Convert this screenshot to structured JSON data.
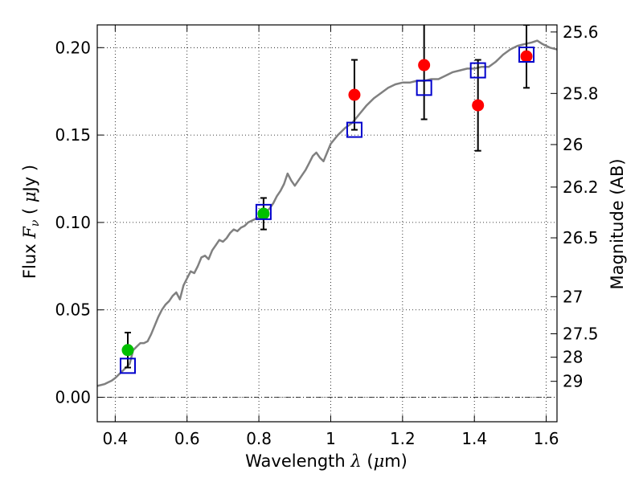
{
  "chart_data": {
    "type": "scatter",
    "title": "",
    "xlabel": "Wavelength  λ (μm)",
    "ylabel": "Flux  Fν  ( μJy )",
    "y2label": "Magnitude (AB)",
    "xlim": [
      0.35,
      1.63
    ],
    "ylim": [
      -0.014,
      0.213
    ],
    "grid": true,
    "legend": "none",
    "x_ticks": [
      {
        "value": 0.4,
        "label": "0.4"
      },
      {
        "value": 0.6,
        "label": "0.6"
      },
      {
        "value": 0.8,
        "label": "0.8"
      },
      {
        "value": 1.0,
        "label": "1"
      },
      {
        "value": 1.2,
        "label": "1.2"
      },
      {
        "value": 1.4,
        "label": "1.4"
      },
      {
        "value": 1.6,
        "label": "1.6"
      }
    ],
    "y_ticks": [
      {
        "value": 0.0,
        "label": "0.00"
      },
      {
        "value": 0.05,
        "label": "0.05"
      },
      {
        "value": 0.1,
        "label": "0.10"
      },
      {
        "value": 0.15,
        "label": "0.15"
      },
      {
        "value": 0.2,
        "label": "0.20"
      }
    ],
    "y2_ticks": [
      {
        "value": 25.6,
        "label": "25.6"
      },
      {
        "value": 25.8,
        "label": "25.8"
      },
      {
        "value": 26.0,
        "label": "26"
      },
      {
        "value": 26.2,
        "label": "26.2"
      },
      {
        "value": 26.5,
        "label": "26.5"
      },
      {
        "value": 27.0,
        "label": "27"
      },
      {
        "value": 27.5,
        "label": "27.5"
      },
      {
        "value": 28.0,
        "label": "28"
      },
      {
        "value": 29.0,
        "label": "29"
      }
    ],
    "series": [
      {
        "kind": "line",
        "color": "#808080",
        "points": [
          [
            0.35,
            0.0065
          ],
          [
            0.37,
            0.0075
          ],
          [
            0.38,
            0.0085
          ],
          [
            0.39,
            0.0095
          ],
          [
            0.4,
            0.011
          ],
          [
            0.41,
            0.013
          ],
          [
            0.42,
            0.015
          ],
          [
            0.43,
            0.017
          ],
          [
            0.44,
            0.019
          ],
          [
            0.445,
            0.023
          ],
          [
            0.45,
            0.027
          ],
          [
            0.46,
            0.029
          ],
          [
            0.47,
            0.031
          ],
          [
            0.48,
            0.031
          ],
          [
            0.49,
            0.032
          ],
          [
            0.5,
            0.036
          ],
          [
            0.51,
            0.041
          ],
          [
            0.52,
            0.046
          ],
          [
            0.53,
            0.05
          ],
          [
            0.54,
            0.053
          ],
          [
            0.55,
            0.055
          ],
          [
            0.56,
            0.058
          ],
          [
            0.57,
            0.06
          ],
          [
            0.58,
            0.056
          ],
          [
            0.59,
            0.064
          ],
          [
            0.6,
            0.068
          ],
          [
            0.61,
            0.072
          ],
          [
            0.62,
            0.071
          ],
          [
            0.63,
            0.075
          ],
          [
            0.64,
            0.08
          ],
          [
            0.65,
            0.081
          ],
          [
            0.66,
            0.079
          ],
          [
            0.67,
            0.084
          ],
          [
            0.68,
            0.087
          ],
          [
            0.69,
            0.09
          ],
          [
            0.7,
            0.089
          ],
          [
            0.71,
            0.091
          ],
          [
            0.72,
            0.094
          ],
          [
            0.73,
            0.096
          ],
          [
            0.74,
            0.095
          ],
          [
            0.75,
            0.097
          ],
          [
            0.76,
            0.098
          ],
          [
            0.77,
            0.1
          ],
          [
            0.78,
            0.101
          ],
          [
            0.79,
            0.102
          ],
          [
            0.8,
            0.103
          ],
          [
            0.81,
            0.105
          ],
          [
            0.82,
            0.106
          ],
          [
            0.83,
            0.108
          ],
          [
            0.84,
            0.111
          ],
          [
            0.85,
            0.115
          ],
          [
            0.86,
            0.118
          ],
          [
            0.87,
            0.122
          ],
          [
            0.88,
            0.128
          ],
          [
            0.89,
            0.124
          ],
          [
            0.9,
            0.121
          ],
          [
            0.91,
            0.124
          ],
          [
            0.92,
            0.127
          ],
          [
            0.93,
            0.13
          ],
          [
            0.94,
            0.134
          ],
          [
            0.95,
            0.138
          ],
          [
            0.96,
            0.14
          ],
          [
            0.97,
            0.137
          ],
          [
            0.98,
            0.135
          ],
          [
            0.99,
            0.14
          ],
          [
            1.0,
            0.145
          ],
          [
            1.02,
            0.15
          ],
          [
            1.04,
            0.154
          ],
          [
            1.06,
            0.157
          ],
          [
            1.08,
            0.162
          ],
          [
            1.1,
            0.167
          ],
          [
            1.12,
            0.171
          ],
          [
            1.14,
            0.174
          ],
          [
            1.16,
            0.177
          ],
          [
            1.18,
            0.179
          ],
          [
            1.2,
            0.18
          ],
          [
            1.22,
            0.18
          ],
          [
            1.24,
            0.181
          ],
          [
            1.26,
            0.181
          ],
          [
            1.28,
            0.182
          ],
          [
            1.3,
            0.182
          ],
          [
            1.32,
            0.184
          ],
          [
            1.34,
            0.186
          ],
          [
            1.36,
            0.187
          ],
          [
            1.38,
            0.188
          ],
          [
            1.4,
            0.188
          ],
          [
            1.42,
            0.189
          ],
          [
            1.44,
            0.189
          ],
          [
            1.46,
            0.192
          ],
          [
            1.48,
            0.196
          ],
          [
            1.5,
            0.199
          ],
          [
            1.52,
            0.201
          ],
          [
            1.54,
            0.202
          ],
          [
            1.56,
            0.203
          ],
          [
            1.575,
            0.204
          ],
          [
            1.59,
            0.202
          ],
          [
            1.61,
            0.2
          ],
          [
            1.63,
            0.199
          ]
        ]
      },
      {
        "kind": "errorbar",
        "color": "#000000",
        "points": [
          {
            "x": 0.435,
            "y": 0.027,
            "yerr_low": 0.01,
            "yerr_high": 0.01
          },
          {
            "x": 0.813,
            "y": 0.105,
            "yerr_low": 0.009,
            "yerr_high": 0.009
          },
          {
            "x": 1.066,
            "y": 0.173,
            "yerr_low": 0.02,
            "yerr_high": 0.02
          },
          {
            "x": 1.26,
            "y": 0.19,
            "yerr_low": 0.031,
            "yerr_high": 0.031
          },
          {
            "x": 1.41,
            "y": 0.167,
            "yerr_low": 0.026,
            "yerr_high": 0.026
          },
          {
            "x": 1.545,
            "y": 0.195,
            "yerr_low": 0.018,
            "yerr_high": 0.018
          }
        ]
      },
      {
        "kind": "marker-circle",
        "color": "#00c000",
        "points": [
          [
            0.435,
            0.027
          ],
          [
            0.813,
            0.105
          ]
        ]
      },
      {
        "kind": "marker-circle",
        "color": "#ff0000",
        "points": [
          [
            1.066,
            0.173
          ],
          [
            1.26,
            0.19
          ],
          [
            1.41,
            0.167
          ],
          [
            1.545,
            0.195
          ]
        ]
      },
      {
        "kind": "marker-square",
        "color": "#0000cc",
        "points": [
          [
            0.435,
            0.018
          ],
          [
            0.813,
            0.106
          ],
          [
            1.066,
            0.153
          ],
          [
            1.26,
            0.177
          ],
          [
            1.41,
            0.187
          ],
          [
            1.545,
            0.196
          ]
        ]
      }
    ]
  }
}
